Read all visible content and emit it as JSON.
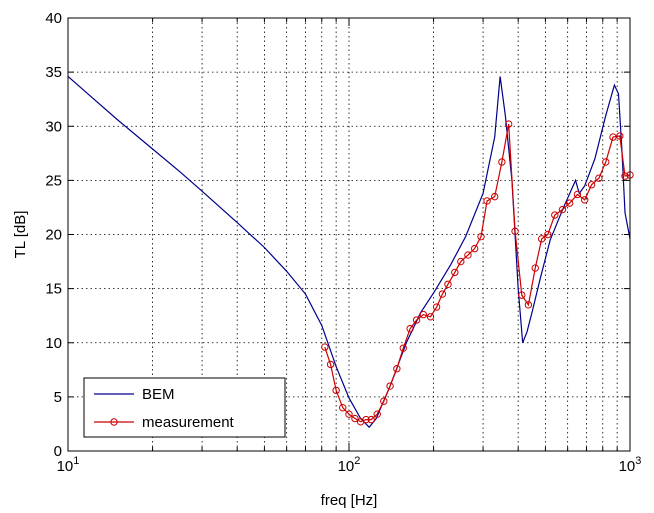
{
  "chart_data": {
    "type": "line",
    "xlabel": "freq [Hz]",
    "ylabel": "TL [dB]",
    "xscale": "log",
    "xlim": [
      10,
      1000
    ],
    "ylim": [
      0,
      40
    ],
    "grid": true,
    "legend_placement": "bottom-left",
    "x_ticks": [
      {
        "base": "10",
        "exp": "1",
        "value": 10
      },
      {
        "base": "10",
        "exp": "2",
        "value": 100
      },
      {
        "base": "10",
        "exp": "3",
        "value": 1000
      }
    ],
    "y_ticks": [
      "0",
      "5",
      "10",
      "15",
      "20",
      "25",
      "30",
      "35",
      "40"
    ],
    "series": [
      {
        "name": "BEM",
        "color": "#00008b",
        "marker": "none",
        "x": [
          10,
          12,
          15,
          20,
          25,
          30,
          40,
          50,
          60,
          70,
          80,
          90,
          100,
          110,
          118,
          125,
          140,
          160,
          180,
          200,
          230,
          260,
          300,
          330,
          345,
          360,
          380,
          400,
          415,
          430,
          450,
          480,
          520,
          580,
          640,
          660,
          690,
          750,
          820,
          880,
          910,
          935,
          960,
          1000
        ],
        "y": [
          34.6,
          32.8,
          30.6,
          27.9,
          25.8,
          24.0,
          21.1,
          18.8,
          16.6,
          14.5,
          11.6,
          7.8,
          4.9,
          3.0,
          2.2,
          3.0,
          6.0,
          10.0,
          12.8,
          14.6,
          17.2,
          19.8,
          23.8,
          29.0,
          34.6,
          31.0,
          25.0,
          15.0,
          10.0,
          11.0,
          13.0,
          16.0,
          19.5,
          22.5,
          25.0,
          23.8,
          24.5,
          27.0,
          31.0,
          33.8,
          33.0,
          28.0,
          22.0,
          19.6
        ]
      },
      {
        "name": "measurement",
        "color": "#cc0000",
        "marker": "circle",
        "x": [
          82,
          86,
          90,
          95,
          100,
          105,
          110,
          115,
          120,
          126,
          133,
          140,
          148,
          156,
          165,
          174,
          184,
          195,
          205,
          215,
          225,
          238,
          250,
          265,
          280,
          295,
          310,
          330,
          350,
          370,
          390,
          412,
          435,
          460,
          485,
          510,
          540,
          575,
          610,
          650,
          690,
          730,
          775,
          820,
          870,
          920,
          960,
          1000
        ],
        "y": [
          9.6,
          8.0,
          5.6,
          4.0,
          3.4,
          3.0,
          2.7,
          2.9,
          2.9,
          3.4,
          4.6,
          6.0,
          7.6,
          9.5,
          11.3,
          12.1,
          12.6,
          12.4,
          13.3,
          14.5,
          15.4,
          16.5,
          17.5,
          18.1,
          18.7,
          19.8,
          23.1,
          23.5,
          26.7,
          30.2,
          20.3,
          14.4,
          13.5,
          16.9,
          19.6,
          20.0,
          21.8,
          22.3,
          22.9,
          23.7,
          23.2,
          24.6,
          25.2,
          26.7,
          29.0,
          29.1,
          25.4,
          25.5
        ]
      }
    ]
  }
}
